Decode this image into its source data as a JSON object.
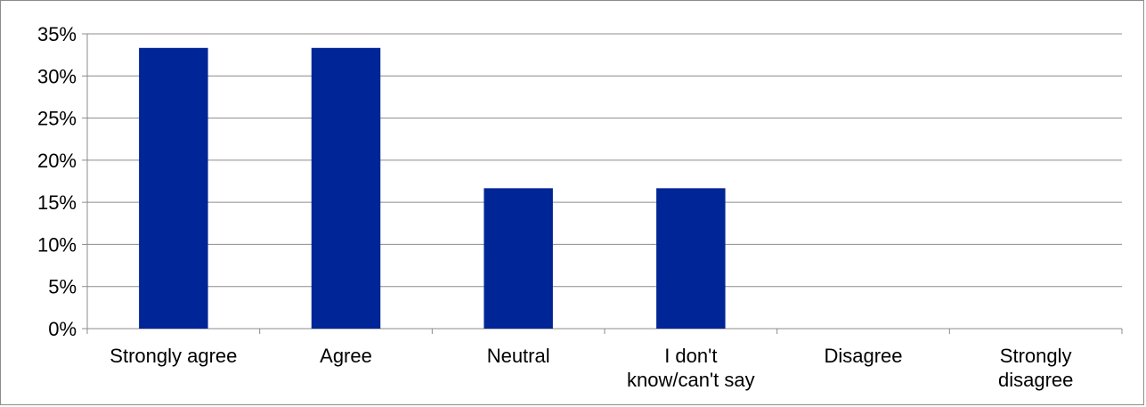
{
  "chart_data": {
    "type": "bar",
    "title": "",
    "xlabel": "",
    "ylabel": "",
    "categories": [
      [
        "Strongly agree"
      ],
      [
        "Agree"
      ],
      [
        "Neutral"
      ],
      [
        "I don't",
        "know/can't say"
      ],
      [
        "Disagree"
      ],
      [
        "Strongly",
        "disagree"
      ]
    ],
    "values": [
      33.33,
      33.33,
      16.67,
      16.67,
      0,
      0
    ],
    "ylim": [
      0,
      35
    ],
    "yticks": [
      0,
      5,
      10,
      15,
      20,
      25,
      30,
      35
    ],
    "ytick_labels": [
      "0%",
      "5%",
      "10%",
      "15%",
      "20%",
      "25%",
      "30%",
      "35%"
    ],
    "grid": true,
    "legend": "none",
    "colors": {
      "bar": "#002596",
      "grid": "#8c8c8c",
      "axis": "#8c8c8c",
      "frame": "#8c8c8c"
    }
  }
}
